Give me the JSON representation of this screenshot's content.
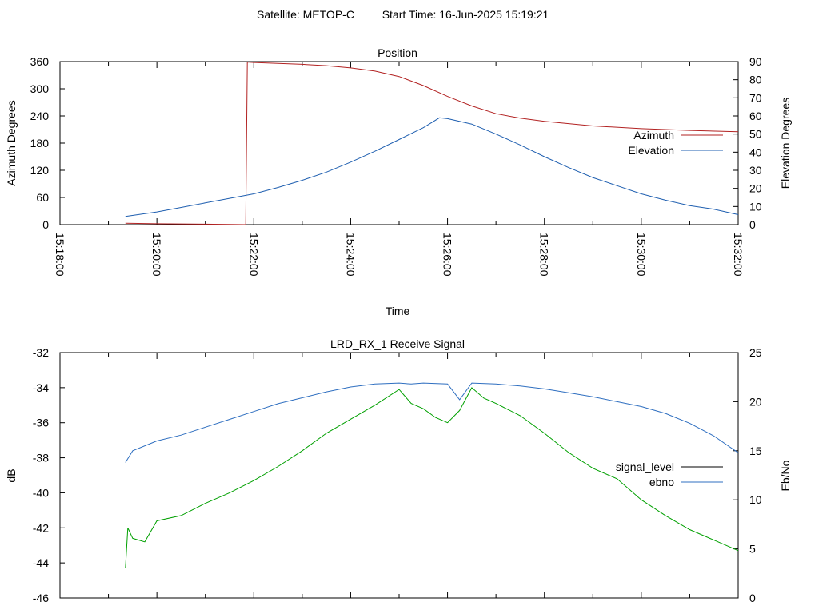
{
  "header": {
    "satellite": "Satellite: METOP-C",
    "start_time": "Start Time: 16-Jun-2025 15:19:21"
  },
  "colors": {
    "azimuth": "#b22222",
    "elevation": "#1f5fb0",
    "signal_level": "#00a000",
    "ebno": "#2f6fc0",
    "legend_signal_key": "#000000"
  },
  "chart_data": [
    {
      "type": "line",
      "title": "Position",
      "xlabel": "Time",
      "ylabel": "Azimuth Degrees",
      "y2label": "Elevation Degrees",
      "xlim": [
        "15:18:00",
        "15:32:00"
      ],
      "ylim": [
        0,
        360
      ],
      "y2lim": [
        0,
        90
      ],
      "x_ticks": [
        "15:18:00",
        "15:20:00",
        "15:22:00",
        "15:24:00",
        "15:26:00",
        "15:28:00",
        "15:30:00",
        "15:32:00"
      ],
      "y_ticks": [
        "0",
        "60",
        "120",
        "180",
        "240",
        "300",
        "360"
      ],
      "y2_ticks": [
        "0",
        "10",
        "20",
        "30",
        "40",
        "50",
        "60",
        "70",
        "80",
        "90"
      ],
      "legend_position": "right",
      "series": [
        {
          "name": "Azimuth",
          "axis": "y",
          "x": [
            "15:19:21",
            "15:20:00",
            "15:21:00",
            "15:21:50",
            "15:21:52",
            "15:22:00",
            "15:22:30",
            "15:23:00",
            "15:23:30",
            "15:24:00",
            "15:24:30",
            "15:25:00",
            "15:25:30",
            "15:26:00",
            "15:26:30",
            "15:27:00",
            "15:27:30",
            "15:28:00",
            "15:29:00",
            "15:30:00",
            "15:31:00",
            "15:32:00"
          ],
          "values": [
            3,
            2,
            1,
            0,
            359,
            358,
            356,
            354,
            351,
            346,
            339,
            327,
            307,
            283,
            262,
            245,
            235,
            228,
            218,
            212,
            208,
            205
          ]
        },
        {
          "name": "Elevation",
          "axis": "y2",
          "x": [
            "15:19:21",
            "15:20:00",
            "15:20:30",
            "15:21:00",
            "15:21:30",
            "15:22:00",
            "15:22:30",
            "15:23:00",
            "15:23:30",
            "15:24:00",
            "15:24:30",
            "15:25:00",
            "15:25:30",
            "15:25:50",
            "15:26:00",
            "15:26:30",
            "15:27:00",
            "15:27:30",
            "15:28:00",
            "15:28:30",
            "15:29:00",
            "15:29:30",
            "15:30:00",
            "15:30:30",
            "15:31:00",
            "15:31:30",
            "15:32:00"
          ],
          "values": [
            4.5,
            7,
            9.5,
            12,
            14.5,
            17,
            20.5,
            24.5,
            29,
            34.5,
            40.5,
            47,
            53.5,
            59,
            58.5,
            55.5,
            50,
            44,
            37.5,
            31.5,
            26,
            21.5,
            17,
            13.5,
            10.5,
            8.5,
            5.5
          ]
        }
      ]
    },
    {
      "type": "line",
      "title": "LRD_RX_1 Receive Signal",
      "xlabel": "",
      "ylabel": "dB",
      "y2label": "Eb/No",
      "xlim": [
        "15:18:00",
        "15:32:00"
      ],
      "ylim": [
        -46,
        -32
      ],
      "y2lim": [
        0,
        25
      ],
      "y_ticks": [
        "-46",
        "-44",
        "-42",
        "-40",
        "-38",
        "-36",
        "-34",
        "-32"
      ],
      "y2_ticks": [
        "0",
        "5",
        "10",
        "15",
        "20",
        "25"
      ],
      "legend_position": "right",
      "series": [
        {
          "name": "signal_level",
          "axis": "y",
          "x": [
            "15:19:21",
            "15:19:24",
            "15:19:30",
            "15:19:45",
            "15:20:00",
            "15:20:30",
            "15:21:00",
            "15:21:30",
            "15:22:00",
            "15:22:30",
            "15:23:00",
            "15:23:30",
            "15:24:00",
            "15:24:30",
            "15:25:00",
            "15:25:15",
            "15:25:30",
            "15:25:45",
            "15:26:00",
            "15:26:15",
            "15:26:30",
            "15:26:45",
            "15:27:00",
            "15:27:30",
            "15:28:00",
            "15:28:30",
            "15:29:00",
            "15:29:30",
            "15:30:00",
            "15:30:30",
            "15:31:00",
            "15:31:30",
            "15:32:00"
          ],
          "values": [
            -44.3,
            -42,
            -42.6,
            -42.8,
            -41.6,
            -41.3,
            -40.6,
            -40.0,
            -39.3,
            -38.5,
            -37.6,
            -36.6,
            -35.8,
            -35.0,
            -34.1,
            -34.9,
            -35.2,
            -35.7,
            -36.0,
            -35.3,
            -34.0,
            -34.6,
            -34.9,
            -35.6,
            -36.6,
            -37.7,
            -38.6,
            -39.2,
            -40.4,
            -41.3,
            -42.1,
            -42.7,
            -43.3
          ]
        },
        {
          "name": "ebno",
          "axis": "y2",
          "x": [
            "15:19:21",
            "15:19:30",
            "15:20:00",
            "15:20:30",
            "15:21:00",
            "15:21:30",
            "15:22:00",
            "15:22:30",
            "15:23:00",
            "15:23:30",
            "15:24:00",
            "15:24:30",
            "15:25:00",
            "15:25:15",
            "15:25:30",
            "15:26:00",
            "15:26:15",
            "15:26:30",
            "15:27:00",
            "15:27:30",
            "15:28:00",
            "15:28:30",
            "15:29:00",
            "15:29:30",
            "15:30:00",
            "15:30:30",
            "15:31:00",
            "15:31:30",
            "15:32:00"
          ],
          "values": [
            13.8,
            15,
            16,
            16.6,
            17.4,
            18.2,
            19.0,
            19.8,
            20.4,
            21.0,
            21.5,
            21.8,
            21.9,
            21.8,
            21.9,
            21.8,
            20.2,
            21.9,
            21.8,
            21.6,
            21.3,
            20.9,
            20.5,
            20.0,
            19.5,
            18.8,
            17.8,
            16.5,
            14.8
          ]
        }
      ]
    }
  ]
}
